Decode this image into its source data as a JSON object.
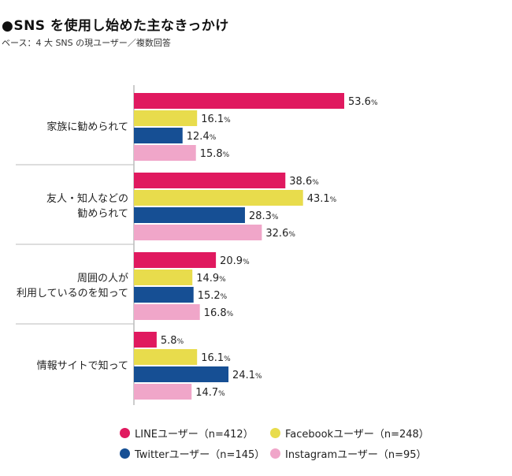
{
  "title": "●SNS を使用し始めた主なきっかけ",
  "subtitle": "ベース：4 大 SNS の現ユーザー／複数回答",
  "colors": {
    "line": "#e0195f",
    "facebook": "#e8dc4c",
    "twitter": "#164f94",
    "instagram": "#f0a6c9"
  },
  "chart_data": {
    "type": "bar",
    "orientation": "horizontal",
    "title": "●SNS を使用し始めた主なきっかけ",
    "subtitle": "ベース：4 大 SNS の現ユーザー／複数回答",
    "unit": "%",
    "categories": [
      "家族に勧められて",
      "友人・知人などの\n勧められて",
      "周囲の人が\n利用しているのを知って",
      "情報サイトで知って"
    ],
    "series": [
      {
        "name": "LINEユーザー（n=412）",
        "color": "#e0195f",
        "values": [
          53.6,
          38.6,
          20.9,
          5.8
        ]
      },
      {
        "name": "Facebookユーザー（n=248）",
        "color": "#e8dc4c",
        "values": [
          16.1,
          43.1,
          14.9,
          16.1
        ]
      },
      {
        "name": "Twitterユーザー（n=145）",
        "color": "#164f94",
        "values": [
          12.4,
          28.3,
          15.2,
          24.1
        ]
      },
      {
        "name": "Instagramユーザー（n=95）",
        "color": "#f0a6c9",
        "values": [
          15.8,
          32.6,
          16.8,
          14.7
        ]
      }
    ],
    "legend_position": "bottom",
    "grid": false
  }
}
